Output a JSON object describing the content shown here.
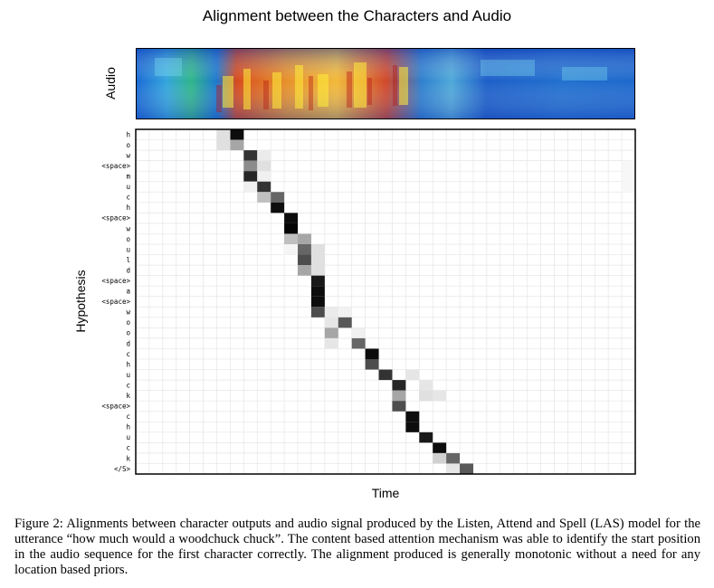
{
  "chart_data": {
    "type": "heatmap",
    "title": "Alignment between the Characters and Audio",
    "spectrogram_label": "Audio",
    "xlabel": "Time",
    "ylabel": "Hypothesis",
    "y_categories": [
      "h",
      "o",
      "w",
      "<space>",
      "m",
      "u",
      "c",
      "h",
      "<space>",
      "w",
      "o",
      "u",
      "l",
      "d",
      "<space>",
      "a",
      "<space>",
      "w",
      "o",
      "o",
      "d",
      "c",
      "h",
      "u",
      "c",
      "k",
      "<space>",
      "c",
      "h",
      "u",
      "c",
      "k",
      "</S>"
    ],
    "n_time_steps": 37,
    "colormap": {
      "low": "#ffffff",
      "high": "#000000"
    },
    "cells": [
      [
        0,
        7,
        0.95
      ],
      [
        0,
        6,
        0.12
      ],
      [
        1,
        6,
        0.12
      ],
      [
        1,
        7,
        0.35
      ],
      [
        2,
        8,
        0.8
      ],
      [
        2,
        9,
        0.08
      ],
      [
        3,
        8,
        0.45
      ],
      [
        3,
        9,
        0.12
      ],
      [
        4,
        8,
        0.85
      ],
      [
        4,
        9,
        0.06
      ],
      [
        5,
        8,
        0.06
      ],
      [
        5,
        9,
        0.8
      ],
      [
        6,
        9,
        0.25
      ],
      [
        6,
        10,
        0.6
      ],
      [
        7,
        10,
        0.95
      ],
      [
        8,
        11,
        0.95
      ],
      [
        9,
        11,
        0.98
      ],
      [
        10,
        11,
        0.25
      ],
      [
        10,
        12,
        0.35
      ],
      [
        11,
        12,
        0.6
      ],
      [
        11,
        13,
        0.12
      ],
      [
        11,
        11,
        0.04
      ],
      [
        12,
        12,
        0.7
      ],
      [
        12,
        13,
        0.12
      ],
      [
        13,
        12,
        0.35
      ],
      [
        13,
        13,
        0.12
      ],
      [
        14,
        13,
        0.9
      ],
      [
        15,
        13,
        0.95
      ],
      [
        16,
        13,
        0.95
      ],
      [
        17,
        13,
        0.7
      ],
      [
        17,
        14,
        0.08
      ],
      [
        17,
        15,
        0.05
      ],
      [
        18,
        14,
        0.1
      ],
      [
        18,
        15,
        0.65
      ],
      [
        19,
        14,
        0.35
      ],
      [
        19,
        16,
        0.06
      ],
      [
        20,
        14,
        0.1
      ],
      [
        20,
        16,
        0.6
      ],
      [
        21,
        17,
        0.95
      ],
      [
        22,
        17,
        0.7
      ],
      [
        23,
        18,
        0.8
      ],
      [
        23,
        20,
        0.1
      ],
      [
        24,
        19,
        0.85
      ],
      [
        24,
        21,
        0.1
      ],
      [
        25,
        19,
        0.35
      ],
      [
        25,
        21,
        0.12
      ],
      [
        25,
        22,
        0.1
      ],
      [
        26,
        19,
        0.7
      ],
      [
        27,
        20,
        0.95
      ],
      [
        28,
        20,
        0.95
      ],
      [
        29,
        21,
        0.9
      ],
      [
        30,
        22,
        0.95
      ],
      [
        31,
        22,
        0.18
      ],
      [
        31,
        23,
        0.6
      ],
      [
        32,
        23,
        0.1
      ],
      [
        32,
        24,
        0.65
      ],
      [
        3,
        36,
        0.03
      ],
      [
        4,
        36,
        0.03
      ],
      [
        5,
        36,
        0.03
      ]
    ]
  },
  "caption": "Figure 2: Alignments between character outputs and audio signal produced by the Listen, Attend and Spell (LAS) model for the utterance “how much would a woodchuck chuck”. The content based attention mechanism was able to identify the start position in the audio sequence for the first character correctly. The alignment produced is generally monotonic without a need for any location based priors."
}
